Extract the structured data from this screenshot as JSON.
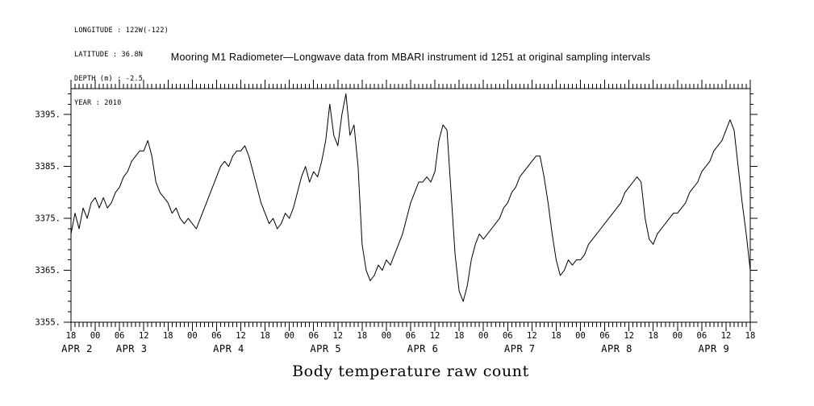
{
  "meta": {
    "lines": [
      "LONGITUDE : 122W(-122)",
      "LATITUDE : 36.8N",
      "DEPTH (m) : -2.5",
      "YEAR : 2010"
    ]
  },
  "title": "Mooring M1 Radiometer—Longwave data from MBARI instrument id 1251 at original sampling intervals",
  "chart_data": {
    "type": "line",
    "title": "Mooring M1 Radiometer—Longwave data from MBARI instrument id 1251 at original sampling intervals",
    "xlabel": "Body temperature raw count",
    "ylabel": "",
    "x_unit": "hours since 2010-04-02 18:00",
    "xlim_hours": [
      0,
      168
    ],
    "ylim": [
      3355,
      3400
    ],
    "grid": false,
    "legend": false,
    "line_color": "#000000",
    "y_major_ticks": [
      3355,
      3365,
      3375,
      3385,
      3395
    ],
    "y_tick_labels": [
      "3355.",
      "3365.",
      "3375.",
      "3385.",
      "3395."
    ],
    "y_minor_step": 2,
    "x_major_step_hours": 6,
    "x_minor_step_hours": 1,
    "x_tick_labels": [
      "18",
      "00",
      "06",
      "12",
      "18",
      "00",
      "06",
      "12",
      "18",
      "00",
      "06",
      "12",
      "18",
      "00",
      "06",
      "12",
      "18",
      "00",
      "06",
      "12",
      "18",
      "00",
      "06",
      "12",
      "18",
      "00",
      "06",
      "12",
      "18"
    ],
    "date_labels": [
      {
        "label": "APR  2",
        "hour": 1.5
      },
      {
        "label": "APR  3",
        "hour": 15
      },
      {
        "label": "APR  4",
        "hour": 39
      },
      {
        "label": "APR  5",
        "hour": 63
      },
      {
        "label": "APR  6",
        "hour": 87
      },
      {
        "label": "APR  7",
        "hour": 111
      },
      {
        "label": "APR  8",
        "hour": 135
      },
      {
        "label": "APR  9",
        "hour": 159
      }
    ],
    "series": [
      {
        "name": "body-temperature-raw-count",
        "color": "#000000",
        "points": [
          [
            0,
            3372
          ],
          [
            1,
            3376
          ],
          [
            2,
            3373
          ],
          [
            3,
            3377
          ],
          [
            4,
            3375
          ],
          [
            5,
            3378
          ],
          [
            6,
            3379
          ],
          [
            7,
            3377
          ],
          [
            8,
            3379
          ],
          [
            9,
            3377
          ],
          [
            10,
            3378
          ],
          [
            11,
            3380
          ],
          [
            12,
            3381
          ],
          [
            13,
            3383
          ],
          [
            14,
            3384
          ],
          [
            15,
            3386
          ],
          [
            16,
            3387
          ],
          [
            17,
            3388
          ],
          [
            18,
            3388
          ],
          [
            19,
            3390
          ],
          [
            20,
            3387
          ],
          [
            21,
            3382
          ],
          [
            22,
            3380
          ],
          [
            23,
            3379
          ],
          [
            24,
            3378
          ],
          [
            25,
            3376
          ],
          [
            26,
            3377
          ],
          [
            27,
            3375
          ],
          [
            28,
            3374
          ],
          [
            29,
            3375
          ],
          [
            30,
            3374
          ],
          [
            31,
            3373
          ],
          [
            32,
            3375
          ],
          [
            33,
            3377
          ],
          [
            34,
            3379
          ],
          [
            35,
            3381
          ],
          [
            36,
            3383
          ],
          [
            37,
            3385
          ],
          [
            38,
            3386
          ],
          [
            39,
            3385
          ],
          [
            40,
            3387
          ],
          [
            41,
            3388
          ],
          [
            42,
            3388
          ],
          [
            43,
            3389
          ],
          [
            44,
            3387
          ],
          [
            45,
            3384
          ],
          [
            46,
            3381
          ],
          [
            47,
            3378
          ],
          [
            48,
            3376
          ],
          [
            49,
            3374
          ],
          [
            50,
            3375
          ],
          [
            51,
            3373
          ],
          [
            52,
            3374
          ],
          [
            53,
            3376
          ],
          [
            54,
            3375
          ],
          [
            55,
            3377
          ],
          [
            56,
            3380
          ],
          [
            57,
            3383
          ],
          [
            58,
            3385
          ],
          [
            59,
            3382
          ],
          [
            60,
            3384
          ],
          [
            61,
            3383
          ],
          [
            62,
            3386
          ],
          [
            63,
            3390
          ],
          [
            64,
            3397
          ],
          [
            65,
            3391
          ],
          [
            66,
            3389
          ],
          [
            67,
            3395
          ],
          [
            68,
            3399
          ],
          [
            69,
            3391
          ],
          [
            70,
            3393
          ],
          [
            71,
            3385
          ],
          [
            72,
            3370
          ],
          [
            73,
            3365
          ],
          [
            74,
            3363
          ],
          [
            75,
            3364
          ],
          [
            76,
            3366
          ],
          [
            77,
            3365
          ],
          [
            78,
            3367
          ],
          [
            79,
            3366
          ],
          [
            80,
            3368
          ],
          [
            81,
            3370
          ],
          [
            82,
            3372
          ],
          [
            83,
            3375
          ],
          [
            84,
            3378
          ],
          [
            85,
            3380
          ],
          [
            86,
            3382
          ],
          [
            87,
            3382
          ],
          [
            88,
            3383
          ],
          [
            89,
            3382
          ],
          [
            90,
            3384
          ],
          [
            91,
            3390
          ],
          [
            92,
            3393
          ],
          [
            93,
            3392
          ],
          [
            94,
            3380
          ],
          [
            95,
            3368
          ],
          [
            96,
            3361
          ],
          [
            97,
            3359
          ],
          [
            98,
            3362
          ],
          [
            99,
            3367
          ],
          [
            100,
            3370
          ],
          [
            101,
            3372
          ],
          [
            102,
            3371
          ],
          [
            103,
            3372
          ],
          [
            104,
            3373
          ],
          [
            105,
            3374
          ],
          [
            106,
            3375
          ],
          [
            107,
            3377
          ],
          [
            108,
            3378
          ],
          [
            109,
            3380
          ],
          [
            110,
            3381
          ],
          [
            111,
            3383
          ],
          [
            112,
            3384
          ],
          [
            113,
            3385
          ],
          [
            114,
            3386
          ],
          [
            115,
            3387
          ],
          [
            116,
            3387
          ],
          [
            117,
            3383
          ],
          [
            118,
            3378
          ],
          [
            119,
            3372
          ],
          [
            120,
            3367
          ],
          [
            121,
            3364
          ],
          [
            122,
            3365
          ],
          [
            123,
            3367
          ],
          [
            124,
            3366
          ],
          [
            125,
            3367
          ],
          [
            126,
            3367
          ],
          [
            127,
            3368
          ],
          [
            128,
            3370
          ],
          [
            129,
            3371
          ],
          [
            130,
            3372
          ],
          [
            131,
            3373
          ],
          [
            132,
            3374
          ],
          [
            133,
            3375
          ],
          [
            134,
            3376
          ],
          [
            135,
            3377
          ],
          [
            136,
            3378
          ],
          [
            137,
            3380
          ],
          [
            138,
            3381
          ],
          [
            139,
            3382
          ],
          [
            140,
            3383
          ],
          [
            141,
            3382
          ],
          [
            142,
            3375
          ],
          [
            143,
            3371
          ],
          [
            144,
            3370
          ],
          [
            145,
            3372
          ],
          [
            146,
            3373
          ],
          [
            147,
            3374
          ],
          [
            148,
            3375
          ],
          [
            149,
            3376
          ],
          [
            150,
            3376
          ],
          [
            151,
            3377
          ],
          [
            152,
            3378
          ],
          [
            153,
            3380
          ],
          [
            154,
            3381
          ],
          [
            155,
            3382
          ],
          [
            156,
            3384
          ],
          [
            157,
            3385
          ],
          [
            158,
            3386
          ],
          [
            159,
            3388
          ],
          [
            160,
            3389
          ],
          [
            161,
            3390
          ],
          [
            162,
            3392
          ],
          [
            163,
            3394
          ],
          [
            164,
            3392
          ],
          [
            165,
            3385
          ],
          [
            166,
            3378
          ],
          [
            167,
            3372
          ],
          [
            168,
            3365
          ]
        ]
      }
    ]
  }
}
